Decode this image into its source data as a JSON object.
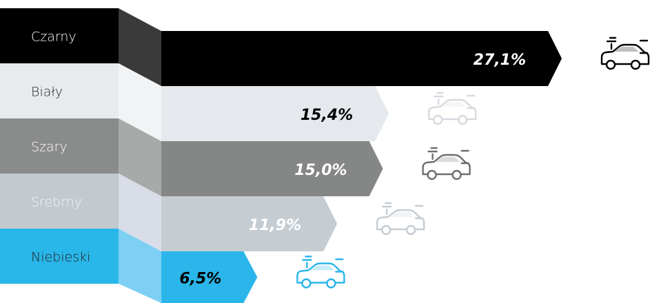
{
  "chart_data": {
    "type": "bar",
    "orientation": "horizontal",
    "categories": [
      "Czarny",
      "Biały",
      "Szary",
      "Srebrny",
      "Niebieski"
    ],
    "values": [
      27.1,
      15.4,
      15.0,
      11.9,
      6.5
    ],
    "value_labels": [
      "27,1%",
      "15,4%",
      "15,0%",
      "11,9%",
      "6,5%"
    ],
    "colors": [
      "#000000",
      "#e5e9ed",
      "#858686",
      "#c5ccd2",
      "#2ab6ea"
    ]
  }
}
